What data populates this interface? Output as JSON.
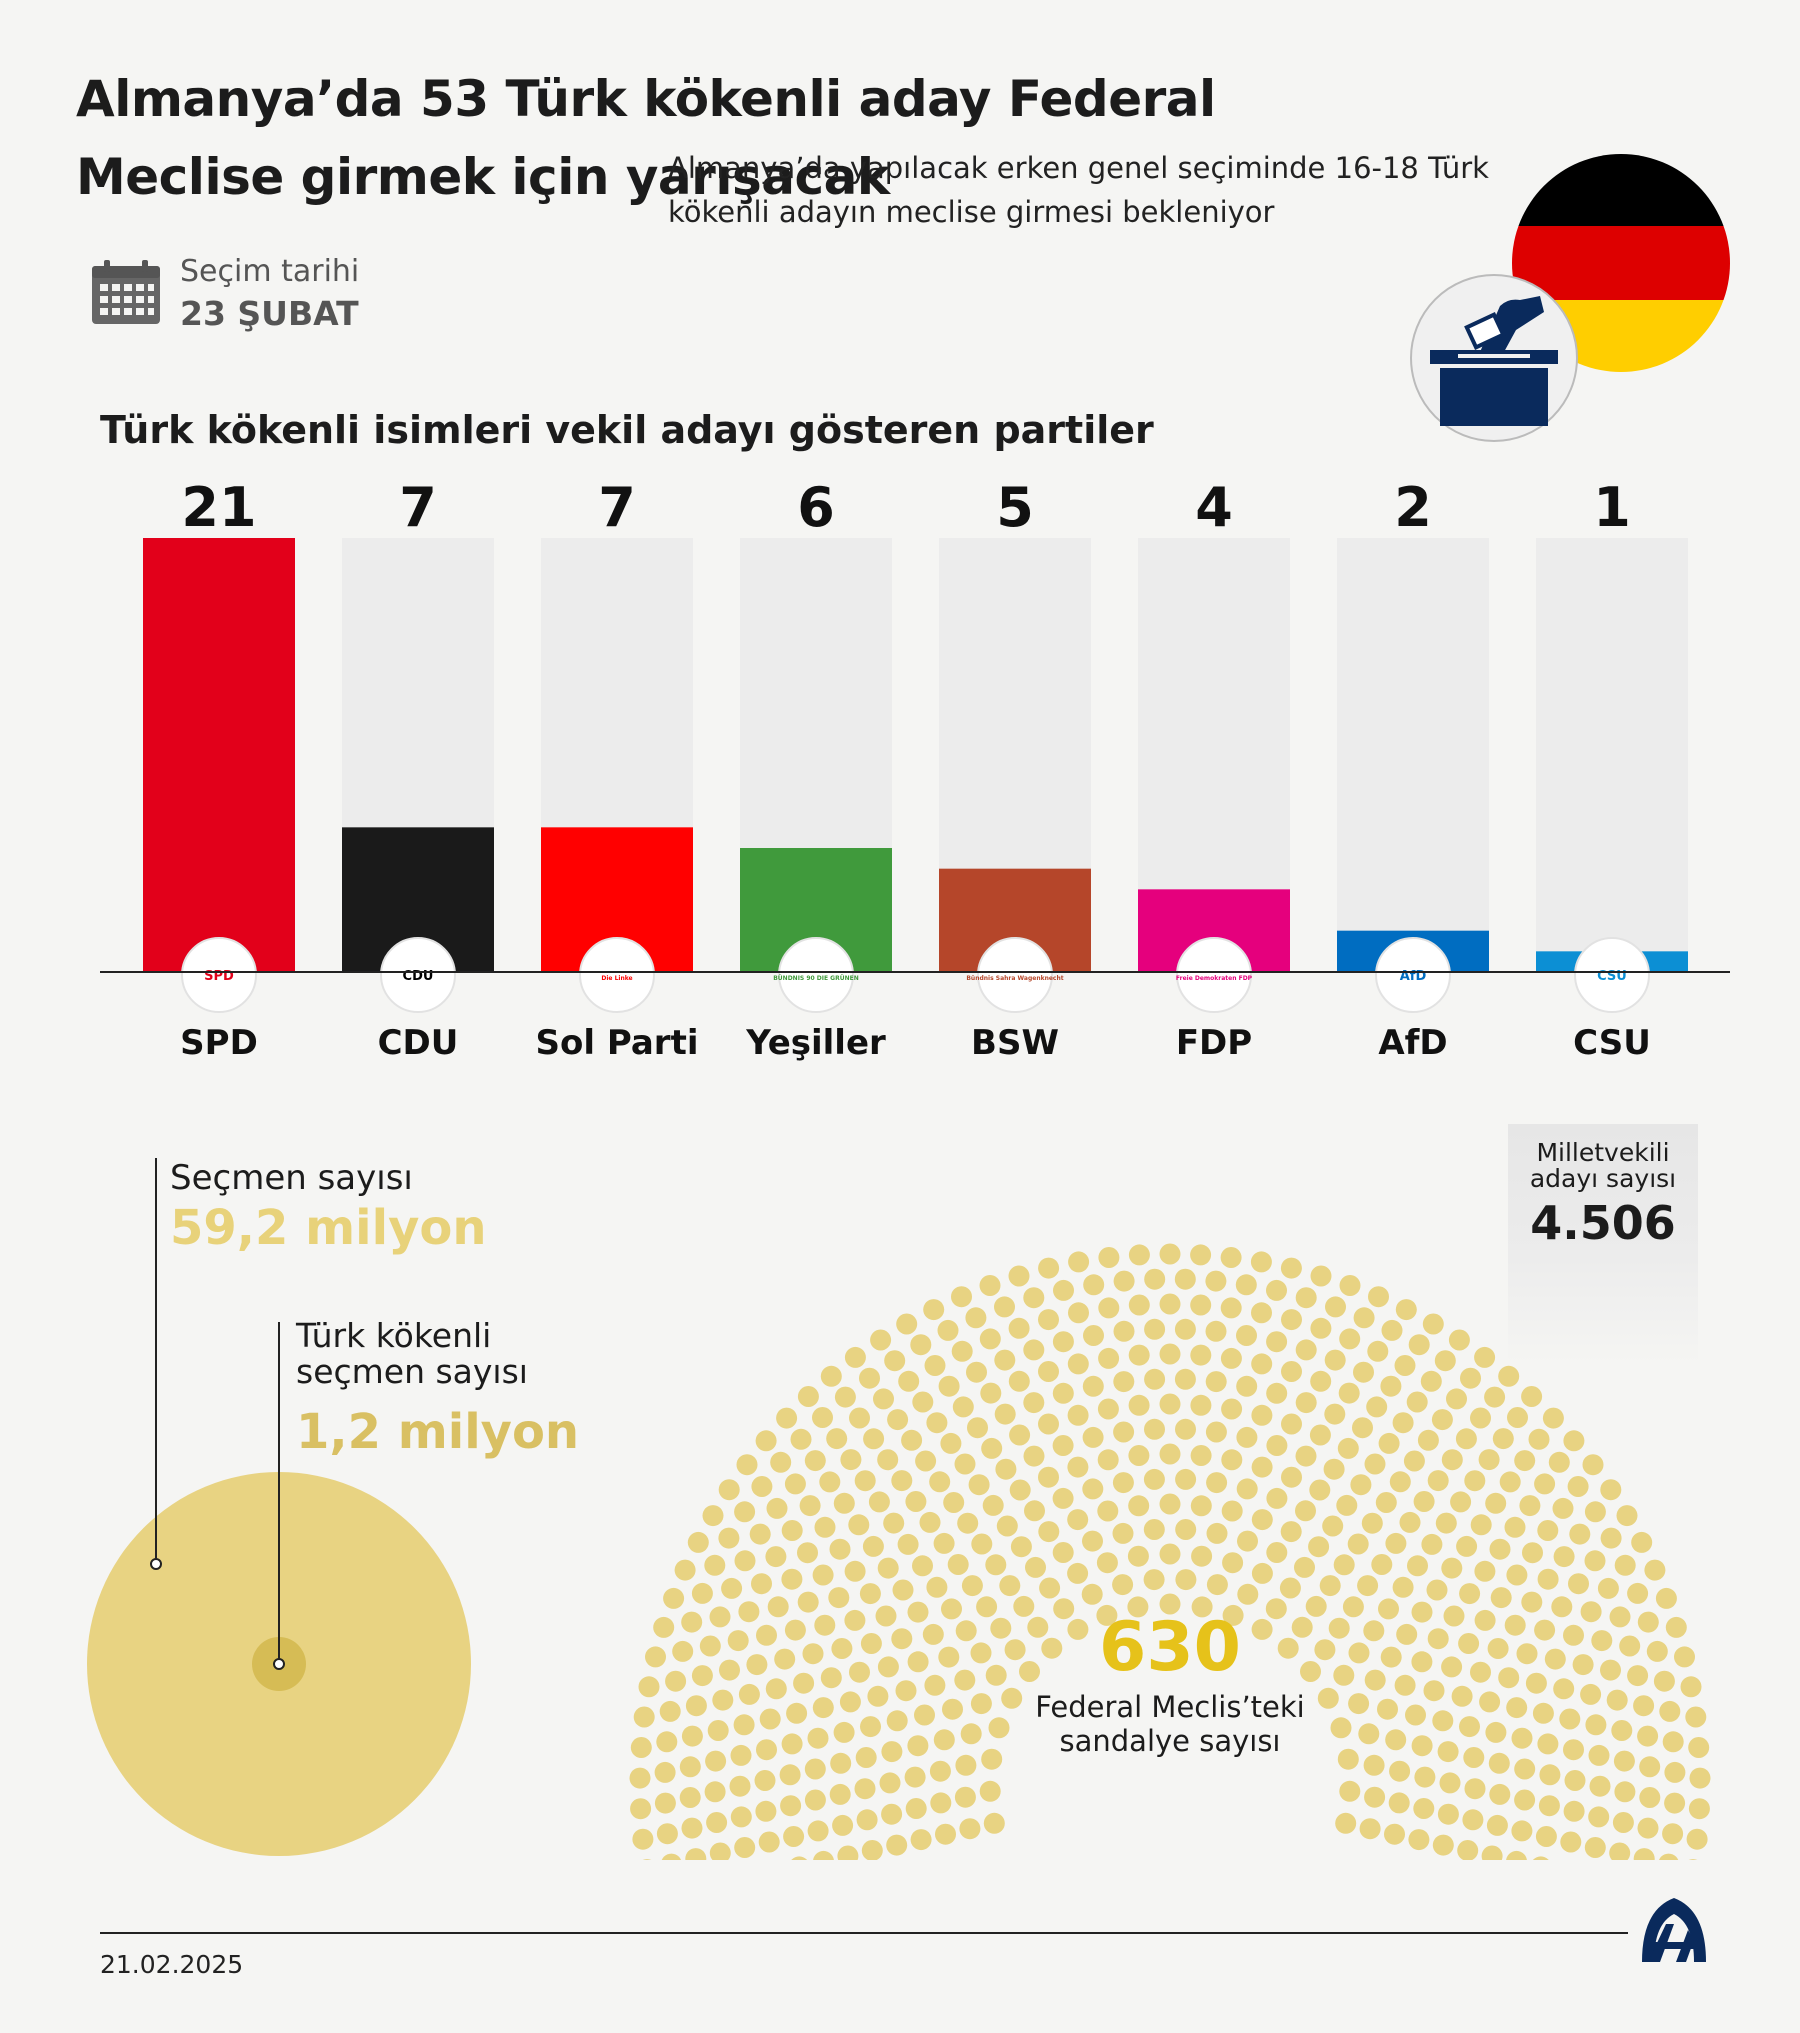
{
  "header": {
    "title": "Almanya’da 53 Türk kökenli aday Federal Meclise girmek için yarışacak",
    "subtitle": "Almanya’da yapılacak erken genel seçiminde 16-18 Türk kökenli adayın meclise girmesi bekleniyor",
    "date_label": "Seçim tarihi",
    "date_value": "23 ŞUBAT"
  },
  "chart_data": {
    "type": "bar",
    "title": "Türk kökenli isimleri vekil adayı gösteren partiler",
    "categories": [
      "SPD",
      "CDU",
      "Sol Parti",
      "Yeşiller",
      "BSW",
      "FDP",
      "AfD",
      "CSU"
    ],
    "values": [
      21,
      7,
      7,
      6,
      5,
      4,
      2,
      1
    ],
    "ylim": [
      0,
      21
    ],
    "colors": [
      "#e2001a",
      "#1a1a1a",
      "#ff0000",
      "#409a3c",
      "#b5462a",
      "#e5007d",
      "#006dc1",
      "#0c8fd4"
    ],
    "logos": [
      "SPD",
      "CDU",
      "Die Linke",
      "BÜNDNIS 90 DIE GRÜNEN",
      "Bündnis Sahra Wagenknecht",
      "Freie Demokraten FDP",
      "AfD",
      "CSU"
    ],
    "grid": false,
    "legend": "none"
  },
  "voters": {
    "total_label": "Seçmen sayısı",
    "total_value": "59,2 milyon",
    "total_millions": 59.2,
    "turkish_label": "Türk kökenli seçmen sayısı",
    "turkish_value": "1,2 milyon",
    "turkish_millions": 1.2
  },
  "parliament": {
    "seats_value": "630",
    "seats_count": 630,
    "seats_label": "Federal Meclis’teki sandalye sayısı",
    "seat_color": "#e8d382"
  },
  "candidates": {
    "label": "Milletvekili adayı sayısı",
    "value": "4.506"
  },
  "footer": {
    "date": "21.02.2025",
    "logo": "AA"
  },
  "colors": {
    "background": "#f5f5f3",
    "bar_track": "#ececec",
    "gold": "#e8d27a",
    "gold_dark": "#d9c063",
    "navy": "#0a2a5c"
  }
}
